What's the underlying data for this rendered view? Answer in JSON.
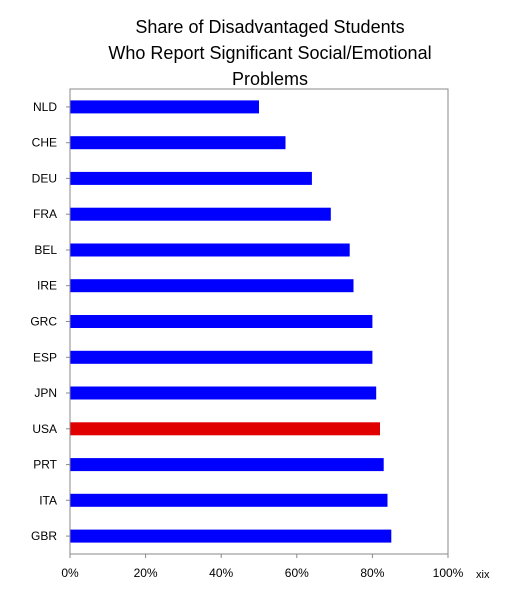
{
  "chart_data": {
    "type": "bar",
    "orientation": "horizontal",
    "title_lines": [
      "Share of Disadvantaged Students",
      "Who Report Significant Social/Emotional",
      "Problems"
    ],
    "categories": [
      "NLD",
      "CHE",
      "DEU",
      "FRA",
      "BEL",
      "IRE",
      "GRC",
      "ESP",
      "JPN",
      "USA",
      "PRT",
      "ITA",
      "GBR"
    ],
    "values": [
      0.5,
      0.57,
      0.64,
      0.69,
      0.74,
      0.75,
      0.8,
      0.8,
      0.81,
      0.82,
      0.83,
      0.84,
      0.85
    ],
    "xlim": [
      0,
      1
    ],
    "xticks": [
      "0%",
      "20%",
      "40%",
      "60%",
      "80%",
      "100%"
    ],
    "xtick_values": [
      0,
      0.2,
      0.4,
      0.6,
      0.8,
      1.0
    ],
    "grid": false,
    "legend": "none",
    "colors": {
      "default": "#0000ff",
      "highlight": "#e00000",
      "highlight_category": "USA"
    },
    "note": "xix"
  }
}
